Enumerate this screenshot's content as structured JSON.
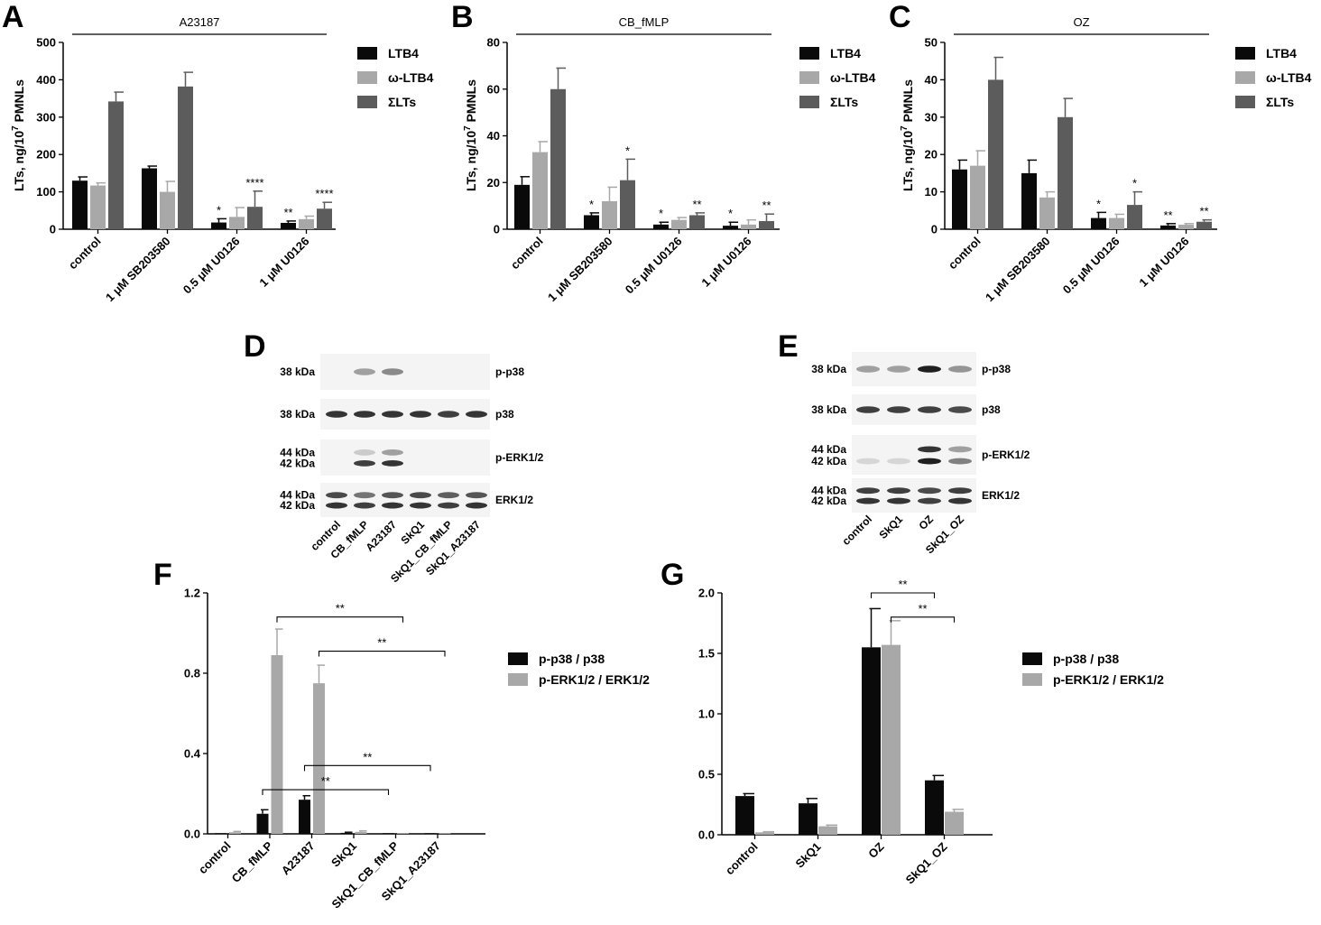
{
  "legend_colors": {
    "black": "#0a0a0a",
    "light": "#a8a8a8",
    "dark": "#5c5c5c"
  },
  "chart_data": [
    {
      "panel": "A",
      "type": "bar",
      "title": "A23187",
      "ylabel": "LTs, ng/10",
      "ylabel_sup": "7",
      "ylabel_tail": " PMNLs",
      "ylim": [
        0,
        500
      ],
      "yticks": [
        "0",
        "100",
        "200",
        "300",
        "400",
        "500"
      ],
      "categories": [
        "control",
        "1 μM SB203580",
        "0.5 μM U0126",
        "1 μM U0126"
      ],
      "series": [
        {
          "name": "LTB4",
          "color": "#0a0a0a",
          "values": [
            130,
            163,
            18,
            17
          ],
          "errors": [
            10,
            6,
            10,
            5
          ],
          "marks": [
            "",
            "",
            "*",
            "**"
          ]
        },
        {
          "name": "ω-LTB4",
          "color": "#a8a8a8",
          "values": [
            117,
            100,
            33,
            27
          ],
          "errors": [
            7,
            28,
            25,
            8
          ],
          "marks": [
            "",
            "",
            "",
            ""
          ]
        },
        {
          "name": "ΣLTs",
          "color": "#5c5c5c",
          "values": [
            342,
            382,
            60,
            55
          ],
          "errors": [
            25,
            38,
            42,
            17
          ],
          "marks": [
            "",
            "",
            "****",
            "****"
          ]
        }
      ]
    },
    {
      "panel": "B",
      "type": "bar",
      "title": "CB_fMLP",
      "ylabel": "LTs, ng/10",
      "ylabel_sup": "7",
      "ylabel_tail": " PMNLs",
      "ylim": [
        0,
        80
      ],
      "yticks": [
        "0",
        "20",
        "40",
        "60",
        "80"
      ],
      "categories": [
        "control",
        "1 μM SB203580",
        "0.5 μM U0126",
        "1 μM U0126"
      ],
      "series": [
        {
          "name": "LTB4",
          "color": "#0a0a0a",
          "values": [
            19,
            6,
            2,
            1.5
          ],
          "errors": [
            3.5,
            1,
            1,
            1.5
          ],
          "marks": [
            "",
            "*",
            "*",
            "*"
          ]
        },
        {
          "name": "ω-LTB4",
          "color": "#a8a8a8",
          "values": [
            33,
            12,
            4,
            2
          ],
          "errors": [
            4.5,
            6,
            1,
            2
          ],
          "marks": [
            "",
            "",
            "",
            ""
          ]
        },
        {
          "name": "ΣLTs",
          "color": "#5c5c5c",
          "values": [
            60,
            21,
            6,
            3.5
          ],
          "errors": [
            9,
            9,
            1,
            3
          ],
          "marks": [
            "",
            "*",
            "**",
            "**"
          ]
        }
      ]
    },
    {
      "panel": "C",
      "type": "bar",
      "title": "OZ",
      "ylabel": "LTs, ng/10",
      "ylabel_sup": "7",
      "ylabel_tail": " PMNLs",
      "ylim": [
        0,
        50
      ],
      "yticks": [
        "0",
        "10",
        "20",
        "30",
        "40",
        "50"
      ],
      "categories": [
        "control",
        "1 μM SB203580",
        "0.5 μM U0126",
        "1 μM U0126"
      ],
      "series": [
        {
          "name": "LTB4",
          "color": "#0a0a0a",
          "values": [
            16,
            15,
            3,
            1
          ],
          "errors": [
            2.5,
            3.5,
            1.5,
            0.5
          ],
          "marks": [
            "",
            "",
            "*",
            "**"
          ]
        },
        {
          "name": "ω-LTB4",
          "color": "#a8a8a8",
          "values": [
            17,
            8.5,
            3,
            1.2
          ],
          "errors": [
            4,
            1.5,
            1,
            0.3
          ],
          "marks": [
            "",
            "",
            "",
            ""
          ]
        },
        {
          "name": "ΣLTs",
          "color": "#5c5c5c",
          "values": [
            40,
            30,
            6.5,
            2
          ],
          "errors": [
            6,
            5,
            3.5,
            0.5
          ],
          "marks": [
            "",
            "",
            "*",
            "**"
          ]
        }
      ]
    },
    {
      "panel": "F",
      "type": "bar",
      "ylim": [
        0,
        1.2
      ],
      "yticks": [
        "0.0",
        "0.4",
        "0.8",
        "1.2"
      ],
      "categories": [
        "control",
        "CB_fMLP",
        "A23187",
        "SkQ1",
        "SkQ1_CB_fMLP",
        "SkQ1_A23187"
      ],
      "series": [
        {
          "name": "p-p38 / p38",
          "color": "#0a0a0a",
          "values": [
            0.003,
            0.1,
            0.17,
            0.005,
            0.002,
            0.002
          ],
          "errors": [
            0,
            0.02,
            0.02,
            0.003,
            0,
            0
          ]
        },
        {
          "name": "p-ERK1/2 / ERK1/2",
          "color": "#a8a8a8",
          "values": [
            0.008,
            0.89,
            0.75,
            0.01,
            0.002,
            0.002
          ],
          "errors": [
            0.004,
            0.13,
            0.09,
            0.005,
            0,
            0
          ]
        }
      ],
      "comparisons": [
        {
          "from": 1,
          "to": 4,
          "value": 1.08,
          "label": "**"
        },
        {
          "from": 2,
          "to": 5,
          "value": 0.91,
          "label": "**"
        },
        {
          "from": 2,
          "to": 5,
          "value": 0.34,
          "label": "**"
        },
        {
          "from": 1,
          "to": 4,
          "value": 0.22,
          "label": "**"
        }
      ]
    },
    {
      "panel": "G",
      "type": "bar",
      "ylim": [
        0,
        2.0
      ],
      "yticks": [
        "0.0",
        "0.5",
        "1.0",
        "1.5",
        "2.0"
      ],
      "categories": [
        "control",
        "SkQ1",
        "OZ",
        "SkQ1_OZ"
      ],
      "series": [
        {
          "name": "p-p38 / p38",
          "color": "#0a0a0a",
          "values": [
            0.32,
            0.26,
            1.55,
            0.45
          ],
          "errors": [
            0.02,
            0.04,
            0.32,
            0.04
          ]
        },
        {
          "name": "p-ERK1/2 / ERK1/2",
          "color": "#a8a8a8",
          "values": [
            0.02,
            0.07,
            1.57,
            0.19
          ],
          "errors": [
            0.005,
            0.01,
            0.2,
            0.02
          ]
        }
      ],
      "comparisons": [
        {
          "from": 2,
          "to": 3,
          "value": 2.0,
          "label": "**",
          "anchor": "left"
        },
        {
          "from": 2,
          "to": 3,
          "value": 1.8,
          "label": "**",
          "anchor": "right"
        }
      ]
    }
  ],
  "panels": {
    "A": "A",
    "B": "B",
    "C": "C",
    "D": "D",
    "E": "E",
    "F": "F",
    "G": "G"
  },
  "blot_D": {
    "lanes": [
      "control",
      "CB_fMLP",
      "A23187",
      "SkQ1",
      "SkQ1_CB_fMLP",
      "SkQ1_A23187"
    ],
    "rows": [
      {
        "name": "p-p38",
        "kda": [
          "38 kDa"
        ],
        "intensities": [
          [
            0,
            0.35,
            0.45,
            0,
            0,
            0
          ]
        ]
      },
      {
        "name": "p38",
        "kda": [
          "38 kDa"
        ],
        "intensities": [
          [
            0.85,
            0.85,
            0.85,
            0.85,
            0.8,
            0.85
          ]
        ]
      },
      {
        "name": "p-ERK1/2",
        "kda": [
          "44 kDa",
          "42 kDa"
        ],
        "intensities": [
          [
            0,
            0.15,
            0.35,
            0,
            0,
            0
          ],
          [
            0,
            0.8,
            0.85,
            0,
            0,
            0
          ]
        ]
      },
      {
        "name": "ERK1/2",
        "kda": [
          "44 kDa",
          "42 kDa"
        ],
        "intensities": [
          [
            0.75,
            0.55,
            0.7,
            0.75,
            0.65,
            0.7
          ],
          [
            0.85,
            0.8,
            0.85,
            0.85,
            0.8,
            0.85
          ]
        ]
      }
    ]
  },
  "blot_E": {
    "lanes": [
      "control",
      "SkQ1",
      "OZ",
      "SkQ1_OZ"
    ],
    "rows": [
      {
        "name": "p-p38",
        "kda": [
          "38 kDa"
        ],
        "intensities": [
          [
            0.35,
            0.35,
            0.95,
            0.4
          ]
        ]
      },
      {
        "name": "p38",
        "kda": [
          "38 kDa"
        ],
        "intensities": [
          [
            0.8,
            0.8,
            0.8,
            0.75
          ]
        ]
      },
      {
        "name": "p-ERK1/2",
        "kda": [
          "44 kDa",
          "42 kDa"
        ],
        "intensities": [
          [
            0,
            0,
            0.85,
            0.35
          ],
          [
            0.1,
            0.1,
            0.95,
            0.5
          ]
        ]
      },
      {
        "name": "ERK1/2",
        "kda": [
          "44 kDa",
          "42 kDa"
        ],
        "intensities": [
          [
            0.8,
            0.8,
            0.75,
            0.8
          ],
          [
            0.85,
            0.85,
            0.8,
            0.85
          ]
        ]
      }
    ]
  }
}
